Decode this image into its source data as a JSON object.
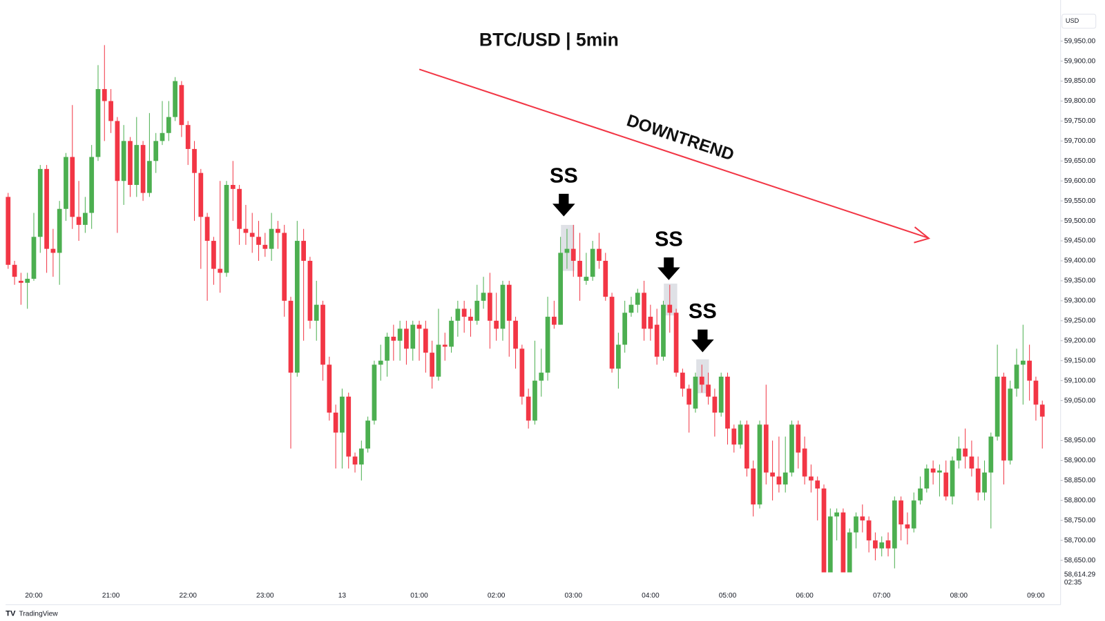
{
  "chart_data": {
    "type": "candlestick",
    "title": "BTC/USD | 5min",
    "trend_label": "DOWNTREND",
    "annotations": [
      "SS",
      "SS",
      "SS"
    ],
    "currency": "USD",
    "brand": "TradingView",
    "up_color": "#4caf50",
    "down_color": "#f23645",
    "grid": false,
    "ylim": [
      58585,
      60053
    ],
    "yticks": [
      {
        "value": 59950,
        "label": "59,950.00"
      },
      {
        "value": 59900,
        "label": "59,900.00"
      },
      {
        "value": 59850,
        "label": "59,850.00"
      },
      {
        "value": 59800,
        "label": "59,800.00"
      },
      {
        "value": 59750,
        "label": "59,750.00"
      },
      {
        "value": 59700,
        "label": "59,700.00"
      },
      {
        "value": 59650,
        "label": "59,650.00"
      },
      {
        "value": 59600,
        "label": "59,600.00"
      },
      {
        "value": 59550,
        "label": "59,550.00"
      },
      {
        "value": 59500,
        "label": "59,500.00"
      },
      {
        "value": 59450,
        "label": "59,450.00"
      },
      {
        "value": 59400,
        "label": "59,400.00"
      },
      {
        "value": 59350,
        "label": "59,350.00"
      },
      {
        "value": 59300,
        "label": "59,300.00"
      },
      {
        "value": 59250,
        "label": "59,250.00"
      },
      {
        "value": 59200,
        "label": "59,200.00"
      },
      {
        "value": 59150,
        "label": "59,150.00"
      },
      {
        "value": 59100,
        "label": "59,100.00"
      },
      {
        "value": 59050,
        "label": "59,050.00"
      },
      {
        "value": 58950,
        "label": "58,950.00"
      },
      {
        "value": 58900,
        "label": "58,900.00"
      },
      {
        "value": 58850,
        "label": "58,850.00"
      },
      {
        "value": 58800,
        "label": "58,800.00"
      },
      {
        "value": 58750,
        "label": "58,750.00"
      },
      {
        "value": 58700,
        "label": "58,700.00"
      },
      {
        "value": 58650,
        "label": "58,650.00"
      }
    ],
    "price_tag": {
      "value": 58614.29,
      "label": "58,614.29",
      "timer": "02:35"
    },
    "categories": [
      null,
      null,
      null,
      null,
      "20:00",
      null,
      null,
      null,
      null,
      null,
      null,
      null,
      null,
      null,
      null,
      null,
      "21:00",
      null,
      null,
      null,
      null,
      null,
      null,
      null,
      null,
      null,
      null,
      null,
      "22:00",
      null,
      null,
      null,
      null,
      null,
      null,
      null,
      null,
      null,
      null,
      null,
      "23:00",
      null,
      null,
      null,
      null,
      null,
      null,
      null,
      null,
      null,
      null,
      null,
      "13",
      null,
      null,
      null,
      null,
      null,
      null,
      null,
      null,
      null,
      null,
      null,
      "01:00",
      null,
      null,
      null,
      null,
      null,
      null,
      null,
      null,
      null,
      null,
      null,
      "02:00",
      null,
      null,
      null,
      null,
      null,
      null,
      null,
      null,
      null,
      null,
      null,
      "03:00",
      null,
      null,
      null,
      null,
      null,
      null,
      null,
      null,
      null,
      null,
      null,
      "04:00",
      null,
      null,
      null,
      null,
      null,
      null,
      null,
      null,
      null,
      null,
      null,
      "05:00",
      null,
      null,
      null,
      null,
      null,
      null,
      null,
      null,
      null,
      null,
      null,
      "06:00",
      null,
      null,
      null,
      null,
      null,
      null,
      null,
      null,
      null,
      null,
      null,
      "07:00",
      null,
      null,
      null,
      null,
      null,
      null,
      null,
      null,
      null,
      null,
      null,
      "08:00",
      null,
      null,
      null,
      null,
      null,
      null,
      null,
      null,
      null,
      null,
      null,
      "09:00",
      null
    ],
    "open": [
      59560,
      59390,
      59350,
      59345,
      59355,
      59460,
      59630,
      59430,
      59420,
      59530,
      59660,
      59510,
      59490,
      59520,
      59660,
      59830,
      59800,
      59750,
      59600,
      59700,
      59590,
      59690,
      59570,
      59650,
      59700,
      59720,
      59760,
      59840,
      59740,
      59680,
      59620,
      59510,
      59450,
      59380,
      59370,
      59590,
      59580,
      59480,
      59470,
      59460,
      59440,
      59430,
      59480,
      59470,
      59300,
      59120,
      59450,
      59400,
      59250,
      59290,
      59140,
      59020,
      58970,
      59060,
      58910,
      58890,
      58930,
      59000,
      59140,
      59150,
      59210,
      59200,
      59230,
      59180,
      59240,
      59230,
      59170,
      59110,
      59190,
      59185,
      59250,
      59280,
      59260,
      59250,
      59300,
      59320,
      59250,
      59230,
      59340,
      59250,
      59180,
      59060,
      59000,
      59100,
      59120,
      59260,
      59240,
      59420,
      59430,
      59400,
      59350,
      59360,
      59430,
      59400,
      59310,
      59130,
      59190,
      59270,
      59290,
      59320,
      59260,
      59240,
      59160,
      59290,
      59270,
      59120,
      59080,
      59030,
      59110,
      59090,
      59060,
      59020,
      59110,
      58980,
      58940,
      58990,
      58880,
      58790,
      58990,
      58870,
      58860,
      58840,
      58870,
      58990,
      58930,
      58860,
      58850,
      58830,
      58620,
      58760,
      58770,
      58620,
      58720,
      58760,
      58750,
      58700,
      58680,
      58700,
      58680,
      58800,
      58740,
      58730,
      58800,
      58830,
      58880,
      58870,
      58870,
      58810,
      58900,
      58930,
      58910,
      58880,
      58820,
      58870,
      58960,
      59110,
      58900,
      59080,
      59140,
      59150,
      59100,
      59040
    ],
    "high": [
      59570,
      59400,
      59370,
      59370,
      59520,
      59640,
      59640,
      59480,
      59550,
      59670,
      59790,
      59600,
      59560,
      59690,
      59890,
      59940,
      59830,
      59760,
      59740,
      59710,
      59760,
      59700,
      59770,
      59720,
      59800,
      59800,
      59860,
      59850,
      59750,
      59700,
      59630,
      59520,
      59460,
      59600,
      59600,
      59650,
      59590,
      59540,
      59520,
      59500,
      59470,
      59520,
      59500,
      59490,
      59310,
      59500,
      59480,
      59410,
      59350,
      59300,
      59160,
      59040,
      59080,
      59070,
      58920,
      58950,
      59010,
      59150,
      59190,
      59220,
      59240,
      59250,
      59250,
      59250,
      59250,
      59250,
      59200,
      59280,
      59220,
      59260,
      59300,
      59300,
      59280,
      59340,
      59360,
      59370,
      59320,
      59350,
      59350,
      59260,
      59190,
      59080,
      59200,
      59180,
      59310,
      59300,
      59460,
      59480,
      59490,
      59470,
      59420,
      59450,
      59470,
      59420,
      59320,
      59220,
      59300,
      59310,
      59330,
      59350,
      59290,
      59280,
      59300,
      59340,
      59280,
      59130,
      59090,
      59120,
      59140,
      59120,
      59080,
      59120,
      59120,
      58990,
      59000,
      59000,
      58900,
      59000,
      59090,
      58950,
      58960,
      58960,
      59000,
      59000,
      58960,
      58890,
      58860,
      58840,
      58780,
      58780,
      58780,
      58730,
      58770,
      58790,
      58760,
      58720,
      58710,
      58720,
      58810,
      58810,
      58770,
      58820,
      58860,
      58890,
      58900,
      58890,
      58900,
      58910,
      58960,
      58980,
      58950,
      58910,
      58900,
      58970,
      59190,
      59120,
      59100,
      59180,
      59240,
      59190,
      59110,
      59050
    ],
    "low": [
      59380,
      59340,
      59290,
      59280,
      59350,
      59420,
      59370,
      59360,
      59340,
      59500,
      59480,
      59450,
      59470,
      59480,
      59650,
      59700,
      59720,
      59470,
      59540,
      59560,
      59560,
      59550,
      59560,
      59620,
      59690,
      59700,
      59750,
      59710,
      59640,
      59500,
      59380,
      59300,
      59340,
      59320,
      59360,
      59500,
      59440,
      59440,
      59420,
      59400,
      59410,
      59400,
      59430,
      59260,
      58930,
      59110,
      59200,
      59230,
      59200,
      59100,
      59000,
      58880,
      58880,
      58880,
      58870,
      58850,
      58920,
      58990,
      59100,
      59110,
      59150,
      59150,
      59140,
      59150,
      59150,
      59120,
      59080,
      59100,
      59150,
      59170,
      59210,
      59220,
      59210,
      59240,
      59280,
      59180,
      59200,
      59200,
      59160,
      59130,
      59040,
      58980,
      58990,
      59060,
      59100,
      59230,
      59240,
      59380,
      59360,
      59300,
      59340,
      59350,
      59380,
      59300,
      59120,
      59080,
      59170,
      59260,
      59270,
      59200,
      59200,
      59140,
      59150,
      59220,
      59110,
      59060,
      58970,
      59020,
      59070,
      59040,
      58960,
      59010,
      58940,
      58920,
      58930,
      58860,
      58760,
      58780,
      58840,
      58800,
      58820,
      58820,
      58860,
      58880,
      58840,
      58820,
      58750,
      58620,
      58620,
      58700,
      58620,
      58620,
      58680,
      58720,
      58670,
      58650,
      58660,
      58660,
      58630,
      58700,
      58690,
      58720,
      58790,
      58820,
      58840,
      58810,
      58800,
      58790,
      58880,
      58880,
      58860,
      58800,
      58800,
      58730,
      58950,
      58840,
      58890,
      59060,
      59040,
      59050,
      59000,
      58930
    ],
    "close": [
      59390,
      59360,
      59345,
      59355,
      59460,
      59630,
      59430,
      59420,
      59530,
      59660,
      59510,
      59490,
      59520,
      59660,
      59830,
      59800,
      59750,
      59600,
      59700,
      59590,
      59690,
      59570,
      59650,
      59700,
      59720,
      59760,
      59850,
      59740,
      59680,
      59620,
      59510,
      59450,
      59380,
      59370,
      59590,
      59580,
      59480,
      59470,
      59460,
      59440,
      59430,
      59480,
      59470,
      59300,
      59120,
      59450,
      59400,
      59250,
      59290,
      59140,
      59020,
      58970,
      59060,
      58910,
      58890,
      58930,
      59000,
      59140,
      59150,
      59210,
      59200,
      59230,
      59180,
      59240,
      59230,
      59170,
      59110,
      59190,
      59185,
      59250,
      59280,
      59260,
      59250,
      59300,
      59320,
      59250,
      59230,
      59340,
      59250,
      59180,
      59060,
      59000,
      59100,
      59120,
      59260,
      59240,
      59420,
      59430,
      59400,
      59360,
      59360,
      59430,
      59400,
      59310,
      59130,
      59190,
      59270,
      59290,
      59320,
      59230,
      59230,
      59160,
      59290,
      59270,
      59120,
      59080,
      59040,
      59110,
      59090,
      59060,
      59020,
      59110,
      58980,
      58940,
      58990,
      58880,
      58790,
      58990,
      58870,
      58860,
      58840,
      58870,
      58990,
      58920,
      58860,
      58850,
      58830,
      58620,
      58760,
      58770,
      58620,
      58720,
      58760,
      58750,
      58700,
      58680,
      58695,
      58680,
      58800,
      58740,
      58730,
      58800,
      58830,
      58880,
      58870,
      58875,
      58810,
      58900,
      58930,
      58910,
      58880,
      58820,
      58870,
      58960,
      59110,
      58900,
      59080,
      59140,
      59150,
      59100,
      59040,
      59010
    ]
  }
}
